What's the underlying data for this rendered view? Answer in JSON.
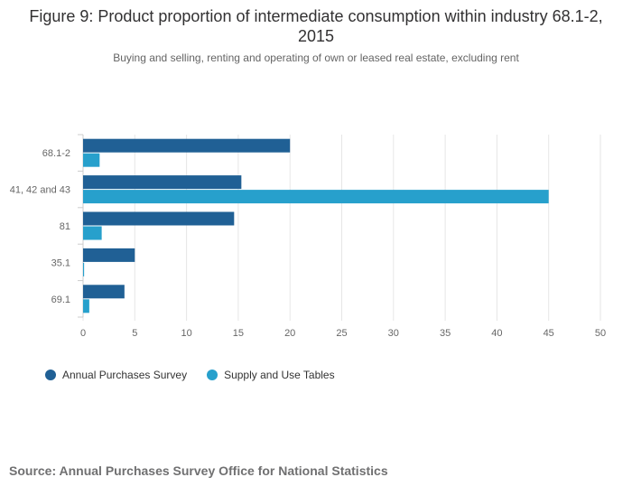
{
  "chart_data": {
    "type": "bar",
    "orientation": "horizontal",
    "title": "Figure 9: Product proportion of intermediate consumption within industry 68.1-2, 2015",
    "subtitle": "Buying and selling, renting and operating of own or leased real estate, excluding rent",
    "categories": [
      "68.1-2",
      "41, 42 and 43",
      "81",
      "35.1",
      "69.1"
    ],
    "series": [
      {
        "name": "Annual Purchases Survey",
        "color": "#206095",
        "values": [
          20.0,
          15.3,
          14.6,
          5.0,
          4.0
        ]
      },
      {
        "name": "Supply and Use Tables",
        "color": "#27a0cc",
        "values": [
          1.6,
          45.0,
          1.8,
          0.1,
          0.6
        ]
      }
    ],
    "x_ticks": [
      "0",
      "5",
      "10",
      "15",
      "20",
      "25",
      "30",
      "35",
      "40",
      "45",
      "50"
    ],
    "xlim": [
      0,
      50
    ],
    "grid": true,
    "legend_position": "bottom-left",
    "source": "Source: Annual Purchases Survey Office for National Statistics"
  }
}
